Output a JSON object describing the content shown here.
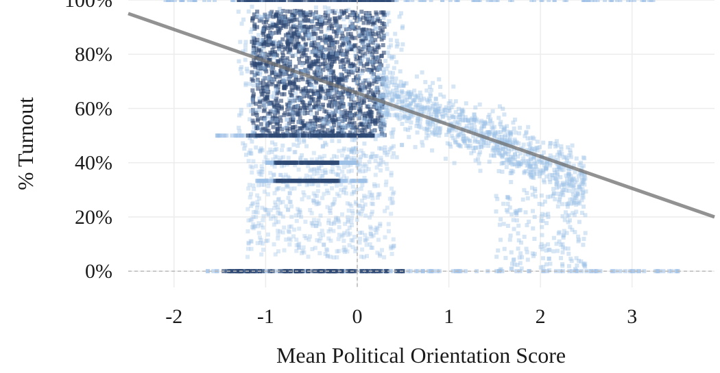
{
  "chart_data": {
    "type": "scatter",
    "title": "",
    "xlabel": "Mean Political Orientation Score",
    "ylabel": "% Turnout",
    "xlim": [
      -2.5,
      3.9
    ],
    "ylim": [
      -0.06,
      1.0
    ],
    "x_ticks": [
      -2,
      -1,
      0,
      1,
      2,
      3
    ],
    "x_tick_labels": [
      "-2",
      "-1",
      "0",
      "1",
      "2",
      "3"
    ],
    "y_ticks": [
      0,
      0.2,
      0.4,
      0.6,
      0.8,
      1.0
    ],
    "y_tick_labels": [
      "0%",
      "20%",
      "40%",
      "60%",
      "80%",
      "100%"
    ],
    "grid": true,
    "reference_lines": {
      "x": 0,
      "y": 0,
      "style": "dashed"
    },
    "trend_line": {
      "x": [
        -2.5,
        3.9
      ],
      "y": [
        0.95,
        0.2
      ]
    },
    "point_color": "#9cc0e6",
    "dense_color": "#2f4a75",
    "trend_color": "#6e6e6e",
    "point_clusters": [
      {
        "name": "main-dense",
        "x_range": [
          -1.15,
          0.3
        ],
        "y_range": [
          0.5,
          0.96
        ],
        "count": 1400,
        "opacity": 0.6
      },
      {
        "name": "main-spread",
        "x_range": [
          -1.3,
          0.5
        ],
        "y_range": [
          0.42,
          0.98
        ],
        "count": 500,
        "opacity": 0.4
      },
      {
        "name": "right-slope",
        "x_range": [
          0.2,
          2.5
        ],
        "trend_intercept": 0.7,
        "trend_slope": -0.15,
        "spread": 0.1,
        "count": 900,
        "opacity": 0.4
      },
      {
        "name": "low-band",
        "x_range": [
          -1.2,
          0.4
        ],
        "y_range": [
          0.05,
          0.45
        ],
        "count": 550,
        "opacity": 0.35
      },
      {
        "name": "right-low",
        "x_range": [
          1.5,
          2.5
        ],
        "y_range": [
          0.0,
          0.3
        ],
        "count": 180,
        "opacity": 0.4
      }
    ],
    "horizontal_bands": [
      {
        "y": 1.0,
        "x_range": [
          -2.1,
          3.3
        ],
        "dense_x_range": [
          -1.3,
          0.4
        ]
      },
      {
        "y": 0.5,
        "x_range": [
          -1.55,
          0.3
        ],
        "dense_x_range": [
          -1.2,
          0.2
        ]
      },
      {
        "y": 0.0,
        "x_range": [
          -1.75,
          3.55
        ],
        "dense_x_range": [
          -1.5,
          0.5
        ]
      },
      {
        "y": 0.4,
        "x_range": [
          -1.0,
          0.0
        ],
        "dense_x_range": [
          -0.9,
          -0.2
        ]
      },
      {
        "y": 0.333,
        "x_range": [
          -1.1,
          0.1
        ],
        "dense_x_range": [
          -0.9,
          -0.2
        ]
      }
    ]
  }
}
